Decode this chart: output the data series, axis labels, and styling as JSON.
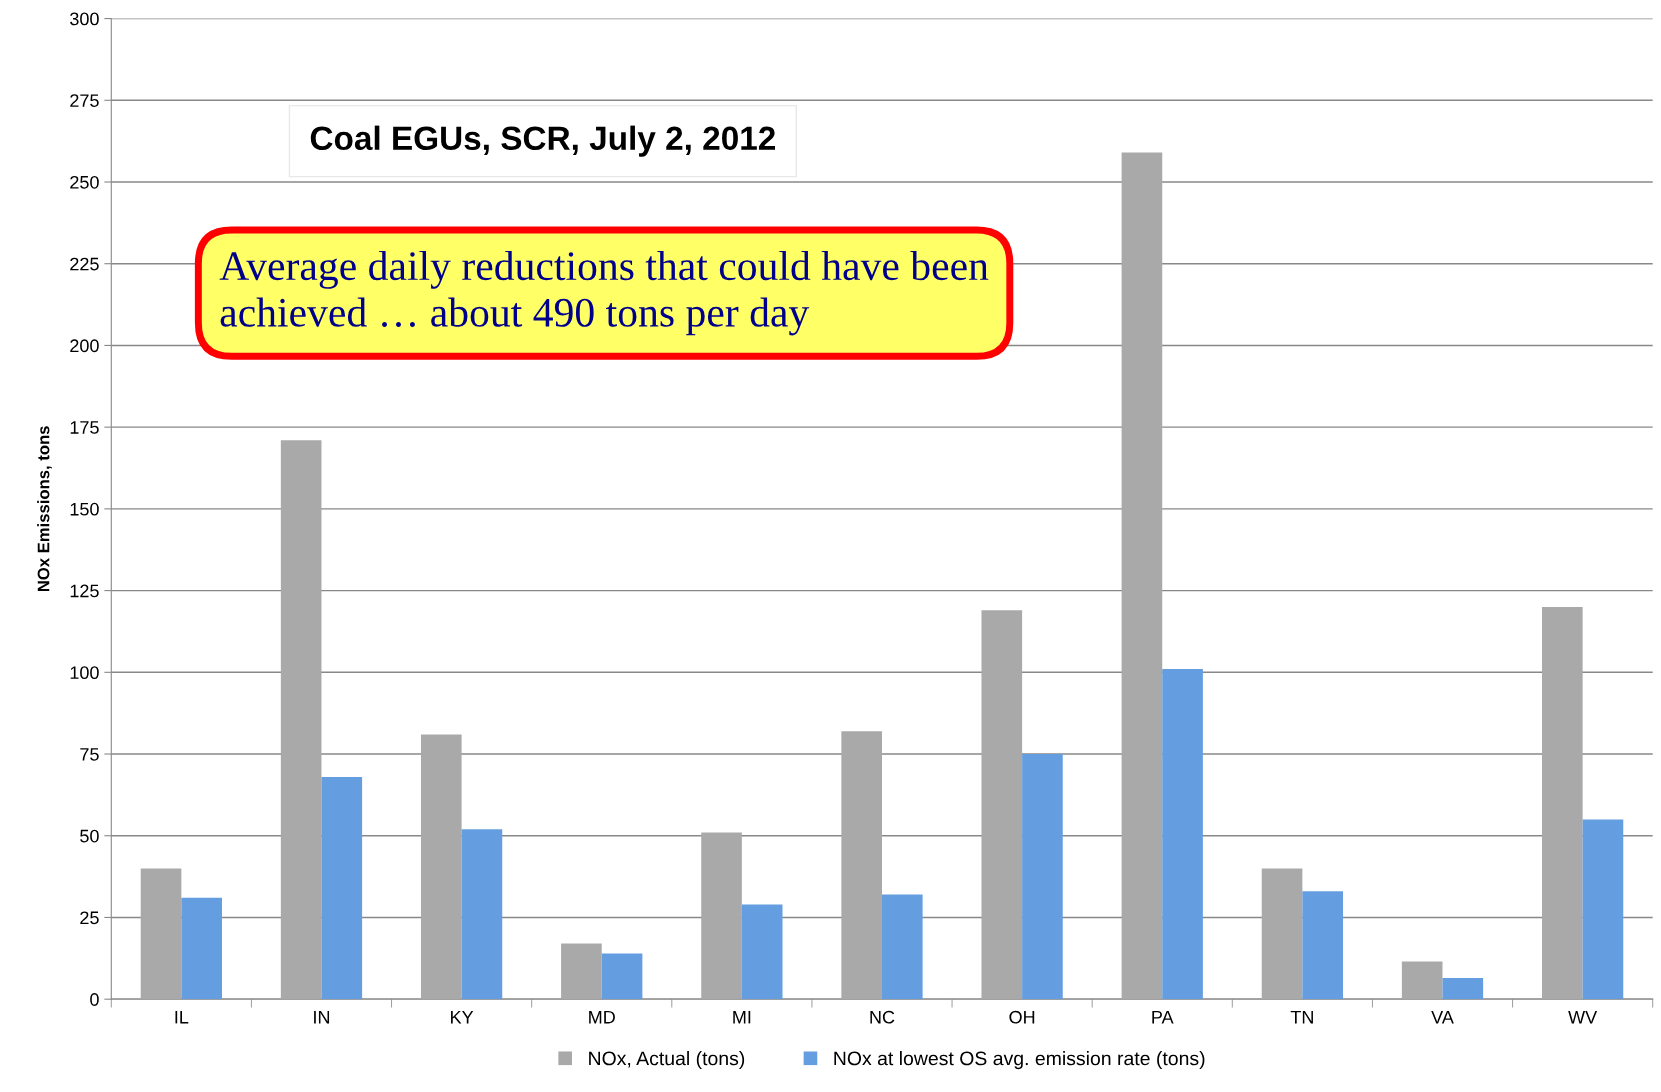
{
  "chart_data": {
    "type": "bar",
    "title": "Coal EGUs, SCR, July 2, 2012",
    "ylabel": "NOx Emissions, tons",
    "annotations": [
      "Average daily reductions that could have been achieved … about 490 tons per day"
    ],
    "categories": [
      "IL",
      "IN",
      "KY",
      "MD",
      "MI",
      "NC",
      "OH",
      "PA",
      "TN",
      "VA",
      "WV"
    ],
    "series": [
      {
        "name": "NOx, Actual (tons)",
        "color": "#a9a9a9",
        "values": [
          40,
          171,
          81,
          17,
          51,
          82,
          119,
          259,
          40,
          11.5,
          120
        ]
      },
      {
        "name": "NOx at lowest OS avg. emission rate (tons)",
        "color": "#659ee0",
        "values": [
          31,
          68,
          52,
          14,
          29,
          32,
          75,
          101,
          33,
          6.5,
          55
        ]
      }
    ],
    "ylim": [
      0,
      300
    ],
    "yticks": [
      0,
      25,
      50,
      75,
      100,
      125,
      150,
      175,
      200,
      225,
      250,
      275,
      300
    ],
    "grid": "y",
    "legend": "bottom"
  }
}
